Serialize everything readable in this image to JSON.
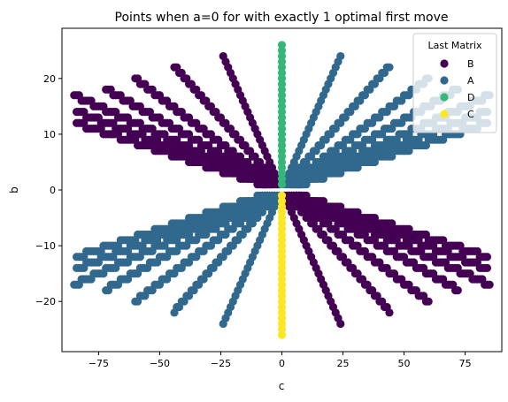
{
  "chart_data": {
    "type": "scatter",
    "title": "Points when a=0 for with exactly 1 optimal first move",
    "xlabel": "c",
    "ylabel": "b",
    "xlim": [
      -90,
      90
    ],
    "ylim": [
      -29,
      29
    ],
    "xticks": [
      -75,
      -50,
      -25,
      0,
      25,
      50,
      75
    ],
    "xtick_labels": [
      "−75",
      "−50",
      "−25",
      "0",
      "25",
      "50",
      "75"
    ],
    "yticks": [
      -20,
      -10,
      0,
      10,
      20
    ],
    "ytick_labels": [
      "−20",
      "−10",
      "0",
      "10",
      "20"
    ],
    "grid": false,
    "legend": {
      "title": "Last Matrix",
      "placement": "top-right",
      "entries": [
        {
          "label": "B",
          "color": "#440154"
        },
        {
          "label": "A",
          "color": "#31688e"
        },
        {
          "label": "D",
          "color": "#35b779"
        },
        {
          "label": "C",
          "color": "#fde725"
        }
      ]
    },
    "series": [
      {
        "name": "B",
        "color": "#440154",
        "rays": [
          {
            "slope": -1.0,
            "range": [
              -24,
              -1
            ]
          },
          {
            "slope": -0.5,
            "range": [
              -44,
              -2
            ]
          },
          {
            "slope": -0.333,
            "range": [
              -60,
              -3
            ]
          },
          {
            "slope": -0.25,
            "range": [
              -72,
              -4
            ]
          },
          {
            "slope": -0.2,
            "range": [
              -85,
              -5
            ]
          },
          {
            "slope": -0.167,
            "range": [
              -84,
              -6
            ]
          },
          {
            "slope": -0.143,
            "range": [
              -84,
              -7
            ]
          },
          {
            "slope": -1.0,
            "range": [
              1,
              24
            ]
          },
          {
            "slope": -0.5,
            "range": [
              2,
              44
            ]
          },
          {
            "slope": -0.333,
            "range": [
              3,
              60
            ]
          },
          {
            "slope": -0.25,
            "range": [
              4,
              72
            ]
          },
          {
            "slope": -0.2,
            "range": [
              5,
              85
            ]
          },
          {
            "slope": -0.167,
            "range": [
              6,
              84
            ]
          },
          {
            "slope": -0.143,
            "range": [
              7,
              84
            ]
          }
        ]
      },
      {
        "name": "A",
        "color": "#31688e",
        "rays": [
          {
            "slope": 1.0,
            "range": [
              1,
              24
            ]
          },
          {
            "slope": 0.5,
            "range": [
              2,
              44
            ]
          },
          {
            "slope": 0.333,
            "range": [
              3,
              60
            ]
          },
          {
            "slope": 0.25,
            "range": [
              4,
              72
            ]
          },
          {
            "slope": 0.2,
            "range": [
              5,
              85
            ]
          },
          {
            "slope": 0.167,
            "range": [
              6,
              84
            ]
          },
          {
            "slope": 0.143,
            "range": [
              7,
              84
            ]
          },
          {
            "slope": 1.0,
            "range": [
              -24,
              -1
            ]
          },
          {
            "slope": 0.5,
            "range": [
              -44,
              -2
            ]
          },
          {
            "slope": 0.333,
            "range": [
              -60,
              -3
            ]
          },
          {
            "slope": 0.25,
            "range": [
              -72,
              -4
            ]
          },
          {
            "slope": 0.2,
            "range": [
              -85,
              -5
            ]
          },
          {
            "slope": 0.167,
            "range": [
              -84,
              -6
            ]
          },
          {
            "slope": 0.143,
            "range": [
              -84,
              -7
            ]
          }
        ]
      },
      {
        "name": "D",
        "color": "#35b779",
        "x": 0,
        "y_range": [
          1,
          26
        ]
      },
      {
        "name": "C",
        "color": "#fde725",
        "x": 0,
        "y_range": [
          -26,
          -1
        ]
      }
    ]
  }
}
